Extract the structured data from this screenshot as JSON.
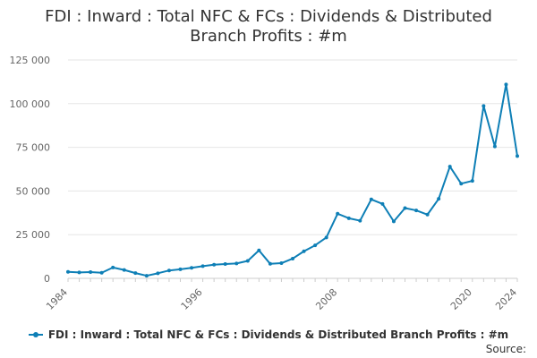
{
  "chart_data": {
    "type": "line",
    "title": "FDI : Inward : Total NFC & FCs : Dividends & Distributed Branch Profits : #m",
    "title_lines": [
      "FDI : Inward : Total NFC & FCs : Dividends & Distributed",
      "Branch Profits : #m"
    ],
    "xlabel": "",
    "ylabel": "",
    "x": [
      1984,
      1985,
      1986,
      1987,
      1988,
      1989,
      1990,
      1991,
      1992,
      1993,
      1994,
      1995,
      1996,
      1997,
      1998,
      1999,
      2000,
      2001,
      2002,
      2003,
      2004,
      2005,
      2006,
      2007,
      2008,
      2009,
      2010,
      2011,
      2012,
      2013,
      2014,
      2015,
      2016,
      2017,
      2018,
      2019,
      2020,
      2021,
      2022,
      2023,
      2024
    ],
    "series": [
      {
        "name": "FDI : Inward : Total NFC & FCs : Dividends & Distributed Branch Profits : #m",
        "color": "#0e7fb6",
        "values": [
          3700,
          3400,
          3600,
          3200,
          6200,
          4800,
          3000,
          1500,
          2900,
          4500,
          5200,
          6000,
          7000,
          7800,
          8200,
          8500,
          10000,
          16000,
          8300,
          8700,
          11300,
          15500,
          18900,
          23400,
          37000,
          34400,
          33000,
          45200,
          42600,
          32600,
          40200,
          38900,
          36500,
          45500,
          64000,
          54200,
          55800,
          98700,
          75500,
          111000,
          70000
        ]
      }
    ],
    "x_ticks": [
      "1984",
      "1996",
      "2008",
      "2020",
      "2024"
    ],
    "y_ticks": [
      "0",
      "25 000",
      "50 000",
      "75 000",
      "100 000",
      "125 000"
    ],
    "y_tick_values": [
      0,
      25000,
      50000,
      75000,
      100000,
      125000
    ],
    "xlim": [
      1984,
      2024
    ],
    "ylim": [
      0,
      125000
    ],
    "grid": "horizontal",
    "legend_position": "bottom"
  },
  "legend": {
    "label": "FDI : Inward : Total NFC & FCs : Dividends & Distributed Branch Profits : #m"
  },
  "source": {
    "label": "Source:"
  }
}
